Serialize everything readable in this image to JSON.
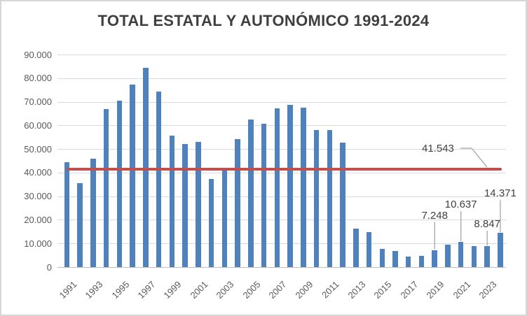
{
  "chart_data": {
    "type": "bar",
    "title": "TOTAL ESTATAL Y AUTONÓMICO 1991-2024",
    "xlabel": "",
    "ylabel": "",
    "ylim": [
      0,
      90000
    ],
    "grid": true,
    "legend": "none",
    "bar_color": "#4f81bd",
    "gridline_color": "#d9d9d9",
    "categories": [
      "1991",
      "1992",
      "1993",
      "1994",
      "1995",
      "1996",
      "1997",
      "1998",
      "1999",
      "2000",
      "2001",
      "2002",
      "2003",
      "2004",
      "2005",
      "2006",
      "2007",
      "2008",
      "2009",
      "2010",
      "2011",
      "2012",
      "2013",
      "2014",
      "2015",
      "2016",
      "2017",
      "2018",
      "2019",
      "2020",
      "2021",
      "2022",
      "2023",
      "2024"
    ],
    "values": [
      44500,
      35600,
      45800,
      67000,
      70400,
      77200,
      84500,
      74300,
      55700,
      52200,
      53100,
      37300,
      41000,
      54200,
      62500,
      60700,
      67100,
      68600,
      67400,
      58000,
      57900,
      52700,
      16400,
      14700,
      7600,
      6800,
      4300,
      4800,
      7248,
      9400,
      10637,
      9000,
      8847,
      14371
    ],
    "y_ticks": [
      {
        "label": "90.000",
        "value": 90000
      },
      {
        "label": "80.000",
        "value": 80000
      },
      {
        "label": "70.000",
        "value": 70000
      },
      {
        "label": "60.000",
        "value": 60000
      },
      {
        "label": "50.000",
        "value": 50000
      },
      {
        "label": "40.000",
        "value": 40000
      },
      {
        "label": "30.000",
        "value": 30000
      },
      {
        "label": "20.000",
        "value": 20000
      },
      {
        "label": "10.000",
        "value": 10000
      },
      {
        "label": "0",
        "value": 0
      }
    ],
    "x_tick_labels": [
      "1991",
      "1993",
      "1995",
      "1997",
      "1999",
      "2001",
      "2003",
      "2005",
      "2007",
      "2009",
      "2011",
      "2013",
      "2015",
      "2017",
      "2019",
      "2021",
      "2023"
    ],
    "reference_line": {
      "value": 41543,
      "label": "41.543",
      "color": "#c0504d"
    },
    "annotations": [
      {
        "category": "2019",
        "label": "7.248"
      },
      {
        "category": "2021",
        "label": "10.637"
      },
      {
        "category": "2023",
        "label": "8.847"
      },
      {
        "category": "2024",
        "label": "14.371"
      }
    ],
    "leader_line_color": "#a6a6a6"
  }
}
